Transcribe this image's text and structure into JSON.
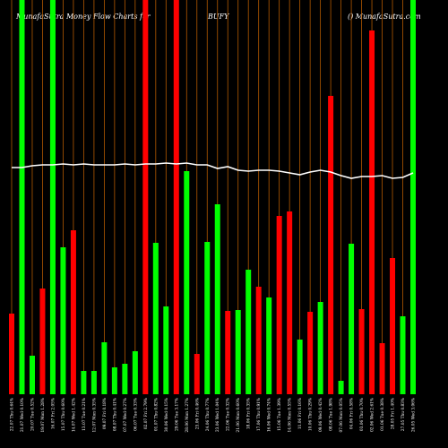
{
  "chart_data": {
    "type": "bar",
    "title": "MunafaSutra  Money Flow  Charts for",
    "symbol": "BUFY",
    "source": "() MunafaSutra.com",
    "categories": [
      "22.07 Thu 0.64%",
      "21.07 Wed 0.10%",
      "20.07 Tue 0.52%",
      "19.07 Mon 1.28%",
      "16.07 Fri 2.05%",
      "15.07 Thu 0.60%",
      "14.07 Wed 1.42%",
      "13.07 Tue 0.21%",
      "12.07 Mon 0.35%",
      "09.07 Fri 0.18%",
      "08.07 Thu 0.41%",
      "07.07 Wed 0.27%",
      "06.07 Tue 0.33%",
      "02.07 Fri 2.79%",
      "01.07 Thu 0.82%",
      "30.06 Wed 0.15%",
      "29.06 Tue 3.17%",
      "28.06 Mon 1.27%",
      "25.06 Fri 0.46%",
      "24.06 Thu 0.77%",
      "23.06 Wed 1.04%",
      "22.06 Tue 0.32%",
      "21.06 Mon 0.60%",
      "18.06 Fri 0.35%",
      "17.06 Thu 0.91%",
      "16.06 Wed 0.74%",
      "15.06 Tue 1.39%",
      "14.06 Mon 0.55%",
      "11.06 Fri 0.16%",
      "10.06 Thu 0.29%",
      "09.06 Wed 0.42%",
      "08.06 Tue 1.98%",
      "07.06 Mon 0.05%",
      "04.06 Fri 0.58%",
      "03.06 Thu 0.70%",
      "02.06 Wed 2.61%",
      "01.06 Tue 0.38%",
      "28.05 Fri 1.40%",
      "27.05 Thu 0.83%",
      "26.05 Wed 3.06%"
    ],
    "series": [
      {
        "name": "Money Flow",
        "values": [
          90,
          440,
          43,
          118,
          440,
          164,
          183,
          26,
          26,
          58,
          30,
          34,
          48,
          440,
          169,
          98,
          440,
          249,
          45,
          170,
          212,
          93,
          94,
          139,
          120,
          108,
          199,
          204,
          61,
          92,
          103,
          333,
          15,
          168,
          95,
          406,
          57,
          152,
          87,
          440
        ],
        "colors": [
          "#ff0000",
          "#00ff00",
          "#00ff00",
          "#ff0000",
          "#00ff00",
          "#00ff00",
          "#ff0000",
          "#00ff00",
          "#00ff00",
          "#00ff00",
          "#00ff00",
          "#00ff00",
          "#00ff00",
          "#ff0000",
          "#00ff00",
          "#00ff00",
          "#ff0000",
          "#00ff00",
          "#ff0000",
          "#00ff00",
          "#00ff00",
          "#ff0000",
          "#00ff00",
          "#00ff00",
          "#ff0000",
          "#00ff00",
          "#ff0000",
          "#ff0000",
          "#00ff00",
          "#ff0000",
          "#00ff00",
          "#ff0000",
          "#00ff00",
          "#00ff00",
          "#ff0000",
          "#ff0000",
          "#ff0000",
          "#ff0000",
          "#00ff00",
          "#00ff00"
        ]
      },
      {
        "name": "Price",
        "type": "line",
        "color": "#ffffff",
        "values": [
          253,
          253,
          255,
          256,
          256,
          257,
          256,
          257,
          256,
          256,
          256,
          257,
          256,
          257,
          257,
          258,
          257,
          258,
          256,
          256,
          252,
          254,
          250,
          249,
          250,
          250,
          249,
          247,
          245,
          248,
          250,
          248,
          244,
          241,
          243,
          243,
          244,
          241,
          242,
          247
        ]
      }
    ],
    "ylim": [
      0,
      440
    ],
    "gridline_color": "#b35900"
  }
}
